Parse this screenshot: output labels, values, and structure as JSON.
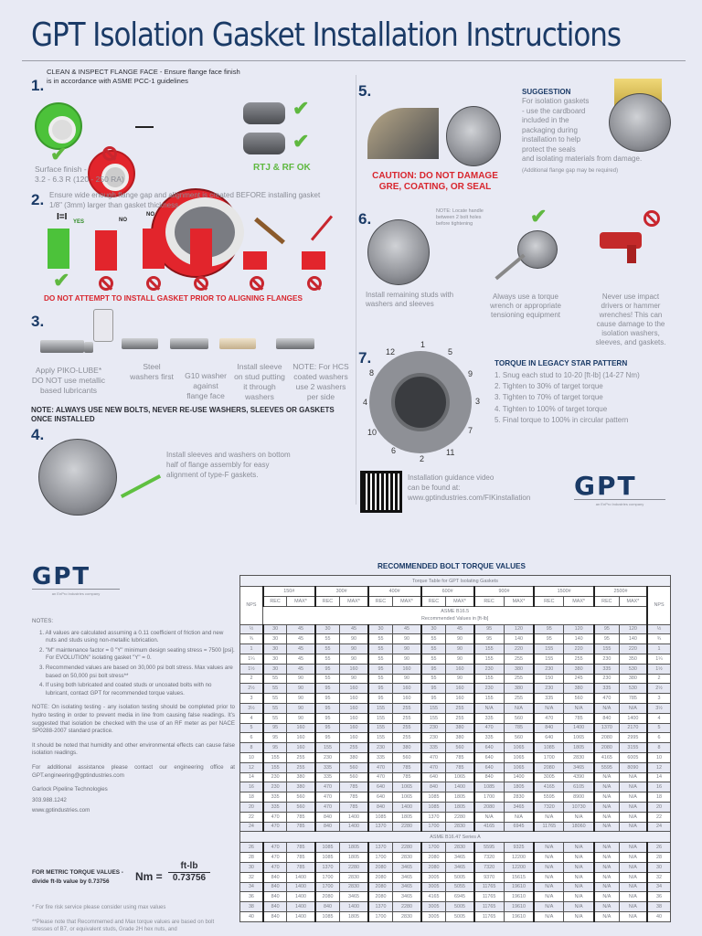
{
  "page": {
    "title": "GPT Isolation Gasket Installation Instructions"
  },
  "step1": {
    "number": "1.",
    "heading_line1": "CLEAN & INSPECT FLANGE FACE - Ensure flange face finish",
    "heading_line2": "is in accordance with ASME PCC-1 guidelines",
    "surface_finish_line1": "Surface finish -",
    "surface_finish_line2": "3.2 - 6.3 R (120 - 250 RA)",
    "rtj_rf_ok": "RTJ & RF OK"
  },
  "step2": {
    "number": "2.",
    "text_line1": "Ensure wide enough flange gap and alignment is created BEFORE installing gasket",
    "text_line2": "1/8\" (3mm) larger than gasket thickness",
    "yes_label": "YES",
    "no_label": "NO",
    "warning": "DO NOT ATTEMPT TO INSTALL GASKET PRIOR TO ALIGNING FLANGES"
  },
  "step3": {
    "number": "3.",
    "captions": [
      {
        "lines": [
          "Apply PIKO-LUBE*",
          "DO NOT use metallic",
          "based lubricants"
        ]
      },
      {
        "lines": [
          "Steel",
          "washers first"
        ]
      },
      {
        "lines": [
          "G10 washer",
          "against",
          "flange face"
        ]
      },
      {
        "lines": [
          "Install sleeve",
          "on stud putting",
          "it through",
          "washers"
        ]
      },
      {
        "lines": [
          "NOTE: For HCS",
          "coated washers",
          "use 2 washers",
          "per side"
        ]
      }
    ],
    "note_line1": "NOTE: ALWAYS USE NEW BOLTS, NEVER RE-USE WASHERS, SLEEVES OR GASKETS",
    "note_line2": "ONCE INSTALLED"
  },
  "step4": {
    "number": "4.",
    "text_line1": "Install sleeves and washers on bottom",
    "text_line2": "half of flange assembly for easy",
    "text_line3": "alignment of type-F gaskets."
  },
  "step5": {
    "number": "5.",
    "caution_line1": "CAUTION: DO NOT DAMAGE",
    "caution_line2": "GRE, COATING, OR SEAL",
    "suggestion_title": "SUGGESTION",
    "suggestion_lines": [
      "For isolation gaskets",
      "- use the cardboard",
      "included in the",
      "packaging during",
      "installation to help",
      "protect the seals",
      "and isolating materials from damage."
    ],
    "suggestion_note": "(Additional flange gap may be required)"
  },
  "step6": {
    "number": "6.",
    "handle_note_lines": [
      "NOTE: Locate handle",
      "between 2 bolt holes",
      "before tightening"
    ],
    "caption1_lines": [
      "Install remaining studs with",
      "washers and sleeves"
    ],
    "caption2_lines": [
      "Always use a torque",
      "wrench or appropriate",
      "tensioning equipment"
    ],
    "caption3_lines": [
      "Never use impact",
      "drivers or hammer",
      "wrenches! This can",
      "cause damage to the",
      "isolation washers,",
      "sleeves, and gaskets."
    ]
  },
  "step7": {
    "number": "7.",
    "bolt_labels": [
      "1",
      "5",
      "9",
      "3",
      "7",
      "11",
      "2",
      "6",
      "10",
      "4",
      "8",
      "12"
    ],
    "torque_title": "TORQUE IN LEGACY STAR PATTERN",
    "torque_steps": [
      "1. Snug each stud to 10-20 [ft-lb] (14-27 Nm)",
      "2. Tighten to 30% of target torque",
      "3. Tighten to 70% of target torque",
      "4. Tighten to 100% of target torque",
      "5. Final torque to 100% in circular pattern"
    ]
  },
  "video": {
    "line1": "Installation guidance video",
    "line2": "can be found at:",
    "url": "www.gptindustries.com/FIKinstallation"
  },
  "logo": {
    "text": "GPT",
    "tagline": "an EnPro Industries company"
  },
  "notes": {
    "heading": "NOTES:",
    "items": [
      "1. All values are calculated assuming a 0.11 coefficient of friction and new nuts and studs using non-metallic lubrication.",
      "2. \"M\" maintenance factor = 0 \"Y\" minimum design seating stress = 7500 [psi]. For EVOLUTION\" isolating gasket \"Y\" = 0.",
      "3. Recommended values are based on 30,000 psi bolt stress. Max values are based on 50,000 psi bolt stress**",
      "4. If using both lubricated and coated studs or uncoated bolts with no lubricant, contact GPT for recommended torque values."
    ],
    "isolation_note": "NOTE: On isolating testing - any isolation testing should be completed prior to hydro testing in order to prevent media in line from causing false readings. It's suggested that isolation be checked with the use of an RF meter as per NACE SP0288-2007 standard practice.",
    "humidity_note": "It should be noted that humidity and other environmental effects can cause false isolation readings.",
    "assistance_note": "For additional assistance please contact our engineering office at GPT.engineering@gptindustries.com",
    "company": "Garlock Pipeline Technologies",
    "phone": "303.988.1242",
    "website": "www.gptindustries.com",
    "metric_line1": "FOR METRIC TORQUE VALUES -",
    "metric_line2": "divide ft-lb value by 0.73756",
    "formula_lhs": "Nm =",
    "formula_num": "ft-lb",
    "formula_den": "0.73756",
    "fire_note": "* For fire risk service please consider using max values",
    "stress_note": "**Please note that Recommemed and Max torque values are based on bolt stresses of B7, or equivalent studs, Grade 2H hex nuts, and"
  },
  "table": {
    "section_title": "RECOMMENDED BOLT TORQUE VALUES",
    "caption": "Torque Table for GPT Isolating Gaskets",
    "nps_label": "NPS",
    "classes": [
      "150#",
      "300#",
      "400#",
      "600#",
      "900#",
      "1500#",
      "2500#"
    ],
    "rec_label": "REC",
    "max_label": "MAX*",
    "b165_line1": "ASME B16.5",
    "b165_line2": "Recommended Values in [ft-lb]",
    "b1647_label": "ASME B16.47 Series A",
    "rows_b165": [
      [
        "½",
        "30",
        "45",
        "30",
        "45",
        "30",
        "45",
        "30",
        "45",
        "95",
        "120",
        "95",
        "120",
        "95",
        "120",
        "½"
      ],
      [
        "¾",
        "30",
        "45",
        "55",
        "90",
        "55",
        "90",
        "55",
        "90",
        "95",
        "140",
        "95",
        "140",
        "95",
        "140",
        "¾"
      ],
      [
        "1",
        "30",
        "45",
        "55",
        "90",
        "55",
        "90",
        "55",
        "90",
        "155",
        "220",
        "155",
        "220",
        "155",
        "220",
        "1"
      ],
      [
        "1¼",
        "30",
        "45",
        "55",
        "90",
        "55",
        "90",
        "55",
        "90",
        "155",
        "255",
        "155",
        "255",
        "230",
        "350",
        "1¼"
      ],
      [
        "1½",
        "30",
        "45",
        "95",
        "160",
        "95",
        "160",
        "95",
        "160",
        "230",
        "380",
        "230",
        "380",
        "335",
        "530",
        "1½"
      ],
      [
        "2",
        "55",
        "90",
        "55",
        "90",
        "55",
        "90",
        "55",
        "90",
        "155",
        "255",
        "150",
        "245",
        "230",
        "380",
        "2"
      ],
      [
        "2½",
        "55",
        "90",
        "95",
        "160",
        "95",
        "160",
        "95",
        "160",
        "230",
        "380",
        "230",
        "380",
        "335",
        "530",
        "2½"
      ],
      [
        "3",
        "55",
        "90",
        "95",
        "160",
        "95",
        "160",
        "95",
        "160",
        "155",
        "255",
        "335",
        "560",
        "470",
        "785",
        "3"
      ],
      [
        "3½",
        "55",
        "90",
        "95",
        "160",
        "155",
        "255",
        "155",
        "255",
        "N/A",
        "N/A",
        "N/A",
        "N/A",
        "N/A",
        "N/A",
        "3½"
      ],
      [
        "4",
        "55",
        "90",
        "95",
        "160",
        "155",
        "255",
        "155",
        "255",
        "335",
        "560",
        "470",
        "785",
        "840",
        "1400",
        "4"
      ],
      [
        "5",
        "95",
        "160",
        "95",
        "160",
        "155",
        "255",
        "230",
        "380",
        "470",
        "785",
        "840",
        "1400",
        "1370",
        "2170",
        "5"
      ],
      [
        "6",
        "95",
        "160",
        "95",
        "160",
        "155",
        "255",
        "230",
        "380",
        "335",
        "560",
        "640",
        "1065",
        "2080",
        "2995",
        "6"
      ],
      [
        "8",
        "95",
        "160",
        "155",
        "255",
        "230",
        "380",
        "335",
        "560",
        "640",
        "1065",
        "1085",
        "1805",
        "2080",
        "3155",
        "8"
      ],
      [
        "10",
        "155",
        "255",
        "230",
        "380",
        "335",
        "560",
        "470",
        "785",
        "640",
        "1065",
        "1700",
        "2830",
        "4165",
        "6005",
        "10"
      ],
      [
        "12",
        "155",
        "255",
        "335",
        "560",
        "470",
        "785",
        "470",
        "785",
        "640",
        "1065",
        "2080",
        "3465",
        "5595",
        "8090",
        "12"
      ],
      [
        "14",
        "230",
        "380",
        "335",
        "560",
        "470",
        "785",
        "640",
        "1065",
        "840",
        "1400",
        "3005",
        "4390",
        "N/A",
        "N/A",
        "14"
      ],
      [
        "16",
        "230",
        "380",
        "470",
        "785",
        "640",
        "1065",
        "840",
        "1400",
        "1085",
        "1805",
        "4165",
        "6105",
        "N/A",
        "N/A",
        "16"
      ],
      [
        "18",
        "335",
        "560",
        "470",
        "785",
        "640",
        "1065",
        "1085",
        "1805",
        "1700",
        "2830",
        "5595",
        "8900",
        "N/A",
        "N/A",
        "18"
      ],
      [
        "20",
        "335",
        "560",
        "470",
        "785",
        "840",
        "1400",
        "1085",
        "1805",
        "2080",
        "3465",
        "7320",
        "10730",
        "N/A",
        "N/A",
        "20"
      ],
      [
        "22",
        "470",
        "785",
        "840",
        "1400",
        "1085",
        "1805",
        "1370",
        "2280",
        "N/A",
        "N/A",
        "N/A",
        "N/A",
        "N/A",
        "N/A",
        "22"
      ],
      [
        "24",
        "470",
        "785",
        "840",
        "1400",
        "1370",
        "2280",
        "1700",
        "2830",
        "4165",
        "6945",
        "11765",
        "18060",
        "N/A",
        "N/A",
        "24"
      ]
    ],
    "rows_b1647": [
      [
        "26",
        "470",
        "785",
        "1085",
        "1805",
        "1370",
        "2280",
        "1700",
        "2830",
        "5595",
        "9325",
        "N/A",
        "N/A",
        "N/A",
        "N/A",
        "26"
      ],
      [
        "28",
        "470",
        "785",
        "1085",
        "1805",
        "1700",
        "2830",
        "2080",
        "3465",
        "7320",
        "12200",
        "N/A",
        "N/A",
        "N/A",
        "N/A",
        "28"
      ],
      [
        "30",
        "470",
        "785",
        "1370",
        "2280",
        "2080",
        "3465",
        "2080",
        "3465",
        "7320",
        "12200",
        "N/A",
        "N/A",
        "N/A",
        "N/A",
        "30"
      ],
      [
        "32",
        "840",
        "1400",
        "1700",
        "2830",
        "2080",
        "3465",
        "3005",
        "5005",
        "9370",
        "15615",
        "N/A",
        "N/A",
        "N/A",
        "N/A",
        "32"
      ],
      [
        "34",
        "840",
        "1400",
        "1700",
        "2830",
        "2080",
        "3465",
        "3005",
        "5055",
        "11765",
        "19610",
        "N/A",
        "N/A",
        "N/A",
        "N/A",
        "34"
      ],
      [
        "36",
        "840",
        "1400",
        "2080",
        "3465",
        "2080",
        "3465",
        "4165",
        "6945",
        "11765",
        "19610",
        "N/A",
        "N/A",
        "N/A",
        "N/A",
        "36"
      ],
      [
        "38",
        "840",
        "1400",
        "840",
        "1400",
        "1370",
        "2280",
        "3005",
        "5005",
        "11765",
        "19610",
        "N/A",
        "N/A",
        "N/A",
        "N/A",
        "38"
      ],
      [
        "40",
        "840",
        "1400",
        "1085",
        "1805",
        "1700",
        "2830",
        "3005",
        "5005",
        "11765",
        "19610",
        "N/A",
        "N/A",
        "N/A",
        "N/A",
        "40"
      ]
    ]
  },
  "colors": {
    "navy": "#1a3a66",
    "red": "#d8262e",
    "green": "#5fb840",
    "background": "#e8eaf4"
  }
}
